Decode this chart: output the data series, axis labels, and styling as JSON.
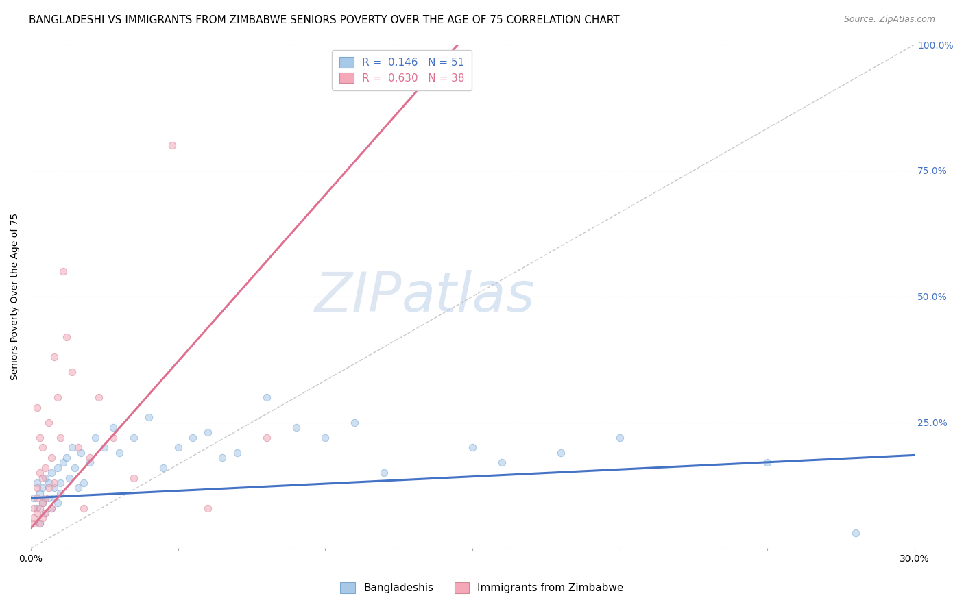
{
  "title": "BANGLADESHI VS IMMIGRANTS FROM ZIMBABWE SENIORS POVERTY OVER THE AGE OF 75 CORRELATION CHART",
  "source": "Source: ZipAtlas.com",
  "ylabel": "Seniors Poverty Over the Age of 75",
  "xlim": [
    0.0,
    0.3
  ],
  "ylim": [
    0.0,
    1.0
  ],
  "xticks": [
    0.0,
    0.05,
    0.1,
    0.15,
    0.2,
    0.25,
    0.3
  ],
  "xtick_labels": [
    "0.0%",
    "",
    "",
    "",
    "",
    "",
    "30.0%"
  ],
  "yticks": [
    0.0,
    0.25,
    0.5,
    0.75,
    1.0
  ],
  "ytick_labels": [
    "",
    "25.0%",
    "50.0%",
    "75.0%",
    "100.0%"
  ],
  "blue_color": "#a8c8e8",
  "pink_color": "#f4a8b8",
  "blue_line_color": "#4472c4",
  "pink_line_color": "#e07090",
  "ref_line_color": "#c8c8c8",
  "legend_blue_R": "0.146",
  "legend_blue_N": "51",
  "legend_pink_R": "0.630",
  "legend_pink_N": "38",
  "legend_label1": "Bangladeshis",
  "legend_label2": "Immigrants from Zimbabwe",
  "watermark_zip": "ZIP",
  "watermark_atlas": "atlas",
  "blue_scatter_x": [
    0.001,
    0.002,
    0.002,
    0.003,
    0.003,
    0.004,
    0.004,
    0.005,
    0.005,
    0.006,
    0.006,
    0.007,
    0.007,
    0.008,
    0.008,
    0.009,
    0.009,
    0.01,
    0.01,
    0.011,
    0.012,
    0.013,
    0.014,
    0.015,
    0.016,
    0.017,
    0.018,
    0.02,
    0.022,
    0.025,
    0.028,
    0.03,
    0.035,
    0.04,
    0.045,
    0.05,
    0.055,
    0.06,
    0.065,
    0.07,
    0.08,
    0.09,
    0.1,
    0.11,
    0.12,
    0.15,
    0.16,
    0.18,
    0.2,
    0.25,
    0.28
  ],
  "blue_scatter_y": [
    0.1,
    0.08,
    0.13,
    0.05,
    0.11,
    0.09,
    0.12,
    0.07,
    0.14,
    0.1,
    0.13,
    0.08,
    0.15,
    0.1,
    0.12,
    0.09,
    0.16,
    0.11,
    0.13,
    0.17,
    0.18,
    0.14,
    0.2,
    0.16,
    0.12,
    0.19,
    0.13,
    0.17,
    0.22,
    0.2,
    0.24,
    0.19,
    0.22,
    0.26,
    0.16,
    0.2,
    0.22,
    0.23,
    0.18,
    0.19,
    0.3,
    0.24,
    0.22,
    0.25,
    0.15,
    0.2,
    0.17,
    0.19,
    0.22,
    0.17,
    0.03
  ],
  "pink_scatter_x": [
    0.001,
    0.001,
    0.001,
    0.002,
    0.002,
    0.002,
    0.002,
    0.003,
    0.003,
    0.003,
    0.003,
    0.004,
    0.004,
    0.004,
    0.004,
    0.005,
    0.005,
    0.005,
    0.006,
    0.006,
    0.007,
    0.007,
    0.008,
    0.008,
    0.009,
    0.01,
    0.011,
    0.012,
    0.014,
    0.016,
    0.018,
    0.02,
    0.023,
    0.028,
    0.035,
    0.048,
    0.06,
    0.08
  ],
  "pink_scatter_y": [
    0.05,
    0.08,
    0.06,
    0.1,
    0.07,
    0.12,
    0.28,
    0.05,
    0.15,
    0.08,
    0.22,
    0.09,
    0.14,
    0.06,
    0.2,
    0.1,
    0.16,
    0.07,
    0.12,
    0.25,
    0.18,
    0.08,
    0.13,
    0.38,
    0.3,
    0.22,
    0.55,
    0.42,
    0.35,
    0.2,
    0.08,
    0.18,
    0.3,
    0.22,
    0.14,
    0.8,
    0.08,
    0.22
  ],
  "blue_trend_x": [
    0.0,
    0.3
  ],
  "blue_trend_y": [
    0.1,
    0.185
  ],
  "pink_trend_x": [
    0.0,
    0.145
  ],
  "pink_trend_y": [
    0.04,
    1.0
  ],
  "ref_line_x": [
    0.0,
    0.3
  ],
  "ref_line_y": [
    0.0,
    1.0
  ],
  "grid_color": "#e0e0e0",
  "title_fontsize": 11,
  "axis_label_fontsize": 10,
  "tick_fontsize": 10,
  "legend_fontsize": 11,
  "source_fontsize": 9,
  "scatter_size": 55,
  "scatter_alpha": 0.55,
  "scatter_linewidth": 0.8,
  "scatter_edgecolor_blue": "#7aaad0",
  "scatter_edgecolor_pink": "#d08898"
}
